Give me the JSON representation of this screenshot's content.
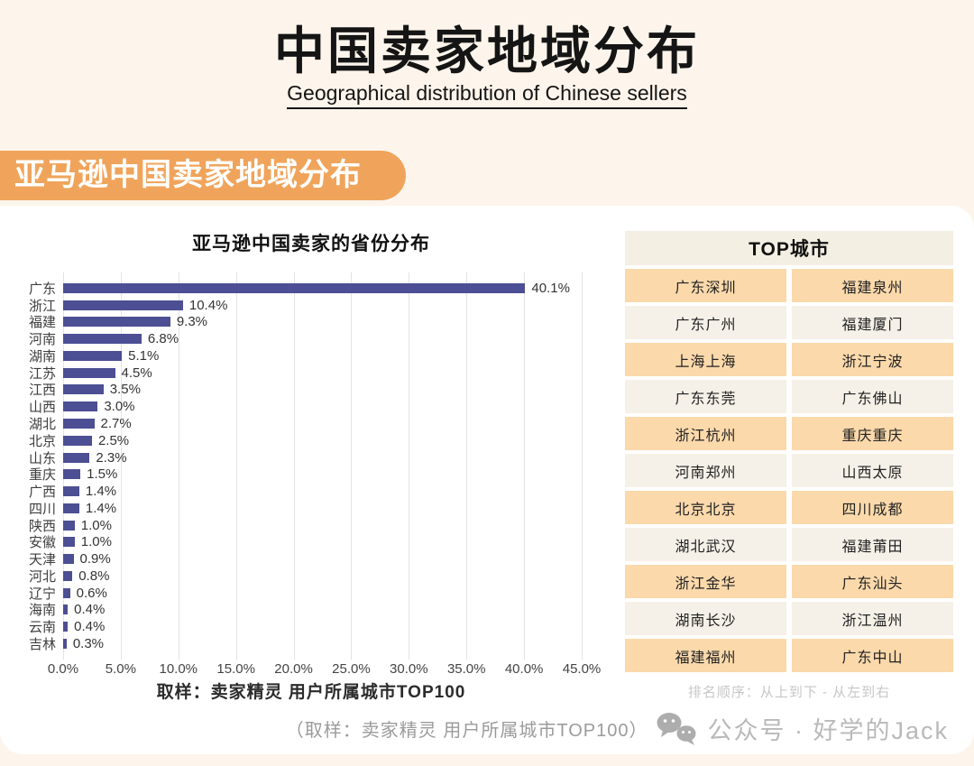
{
  "page": {
    "title": "中国卖家地域分布",
    "subtitle": "Geographical distribution of Chinese sellers",
    "section_banner": "亚马逊中国卖家地域分布",
    "background_color": "#FDF5EC",
    "accent_orange": "#F0A45B",
    "bar_color": "#4C4F93"
  },
  "chart_data": {
    "type": "bar",
    "orientation": "horizontal",
    "title": "亚马逊中国卖家的省份分布",
    "categories": [
      "广东",
      "浙江",
      "福建",
      "河南",
      "湖南",
      "江苏",
      "江西",
      "山西",
      "湖北",
      "北京",
      "山东",
      "重庆",
      "广西",
      "四川",
      "陕西",
      "安徽",
      "天津",
      "河北",
      "辽宁",
      "海南",
      "云南",
      "吉林"
    ],
    "values": [
      40.1,
      10.4,
      9.3,
      6.8,
      5.1,
      4.5,
      3.5,
      3.0,
      2.7,
      2.5,
      2.3,
      1.5,
      1.4,
      1.4,
      1.0,
      1.0,
      0.9,
      0.8,
      0.6,
      0.4,
      0.4,
      0.3
    ],
    "value_labels": [
      "40.1%",
      "10.4%",
      "9.3%",
      "6.8%",
      "5.1%",
      "4.5%",
      "3.5%",
      "3.0%",
      "2.7%",
      "2.5%",
      "2.3%",
      "1.5%",
      "1.4%",
      "1.4%",
      "1.0%",
      "1.0%",
      "0.9%",
      "0.8%",
      "0.6%",
      "0.4%",
      "0.4%",
      "0.3%"
    ],
    "x_ticks": [
      "0.0%",
      "5.0%",
      "10.0%",
      "15.0%",
      "20.0%",
      "25.0%",
      "30.0%",
      "35.0%",
      "40.0%",
      "45.0%"
    ],
    "xlim": [
      0,
      45
    ],
    "grid": true,
    "legend": null,
    "source_note": "取样：卖家精灵 用户所属城市TOP100"
  },
  "top_cities": {
    "header": "TOP城市",
    "rows": [
      [
        "广东深圳",
        "福建泉州"
      ],
      [
        "广东广州",
        "福建厦门"
      ],
      [
        "上海上海",
        "浙江宁波"
      ],
      [
        "广东东莞",
        "广东佛山"
      ],
      [
        "浙江杭州",
        "重庆重庆"
      ],
      [
        "河南郑州",
        "山西太原"
      ],
      [
        "北京北京",
        "四川成都"
      ],
      [
        "湖北武汉",
        "福建莆田"
      ],
      [
        "浙江金华",
        "广东汕头"
      ],
      [
        "湖南长沙",
        "浙江温州"
      ],
      [
        "福建福州",
        "广东中山"
      ]
    ],
    "footnote": "排名顺序：从上到下 - 从左到右"
  },
  "footer": {
    "sample_note": "（取样：卖家精灵 用户所属城市TOP100）",
    "watermark": "公众号 · 好学的Jack",
    "icon": "wechat-icon"
  }
}
